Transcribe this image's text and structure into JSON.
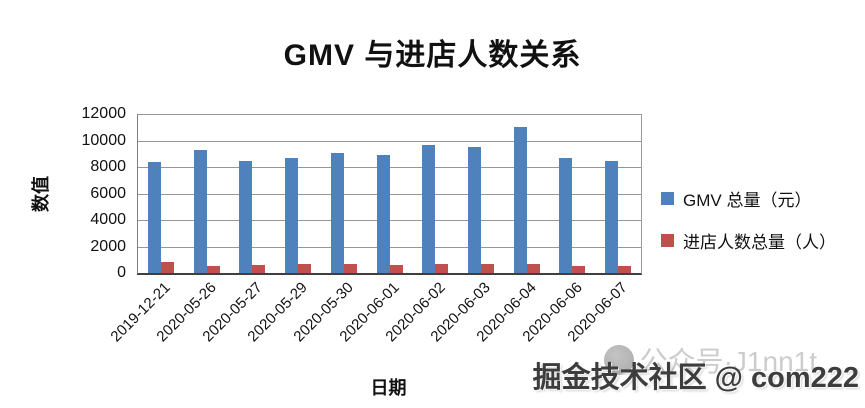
{
  "title": "GMV 与进店人数关系",
  "chart_data": {
    "type": "bar",
    "categories": [
      "2019-12-21",
      "2020-05-26",
      "2020-05-27",
      "2020-05-29",
      "2020-05-30",
      "2020-06-01",
      "2020-06-02",
      "2020-06-03",
      "2020-06-04",
      "2020-06-06",
      "2020-06-07"
    ],
    "series": [
      {
        "name": "GMV 总量（元）",
        "color": "#4F81BD",
        "values": [
          8400,
          9300,
          8450,
          8700,
          9050,
          8900,
          9650,
          9500,
          11050,
          8650,
          8450
        ]
      },
      {
        "name": "进店人数总量（人）",
        "color": "#C0504D",
        "values": [
          800,
          550,
          600,
          650,
          650,
          620,
          680,
          680,
          650,
          550,
          530
        ]
      }
    ],
    "title": "GMV 与进店人数关系",
    "xlabel": "日期",
    "ylabel": "数值",
    "ylim": [
      0,
      12000
    ],
    "yticks": [
      0,
      2000,
      4000,
      6000,
      8000,
      10000,
      12000
    ],
    "grid": true,
    "legend_position": "right"
  },
  "watermark": {
    "faint_text": "公众号·J1nn1t",
    "main_text": "掘金技术社区 @ com222"
  },
  "colors": {
    "bar_blue": "#4F81BD",
    "bar_red": "#C0504D",
    "gridline": "#969696",
    "axis": "#3f3f3f",
    "text": "#111111",
    "watermark_faint": "#cccccc",
    "watermark_main": "#3d3d3d"
  }
}
